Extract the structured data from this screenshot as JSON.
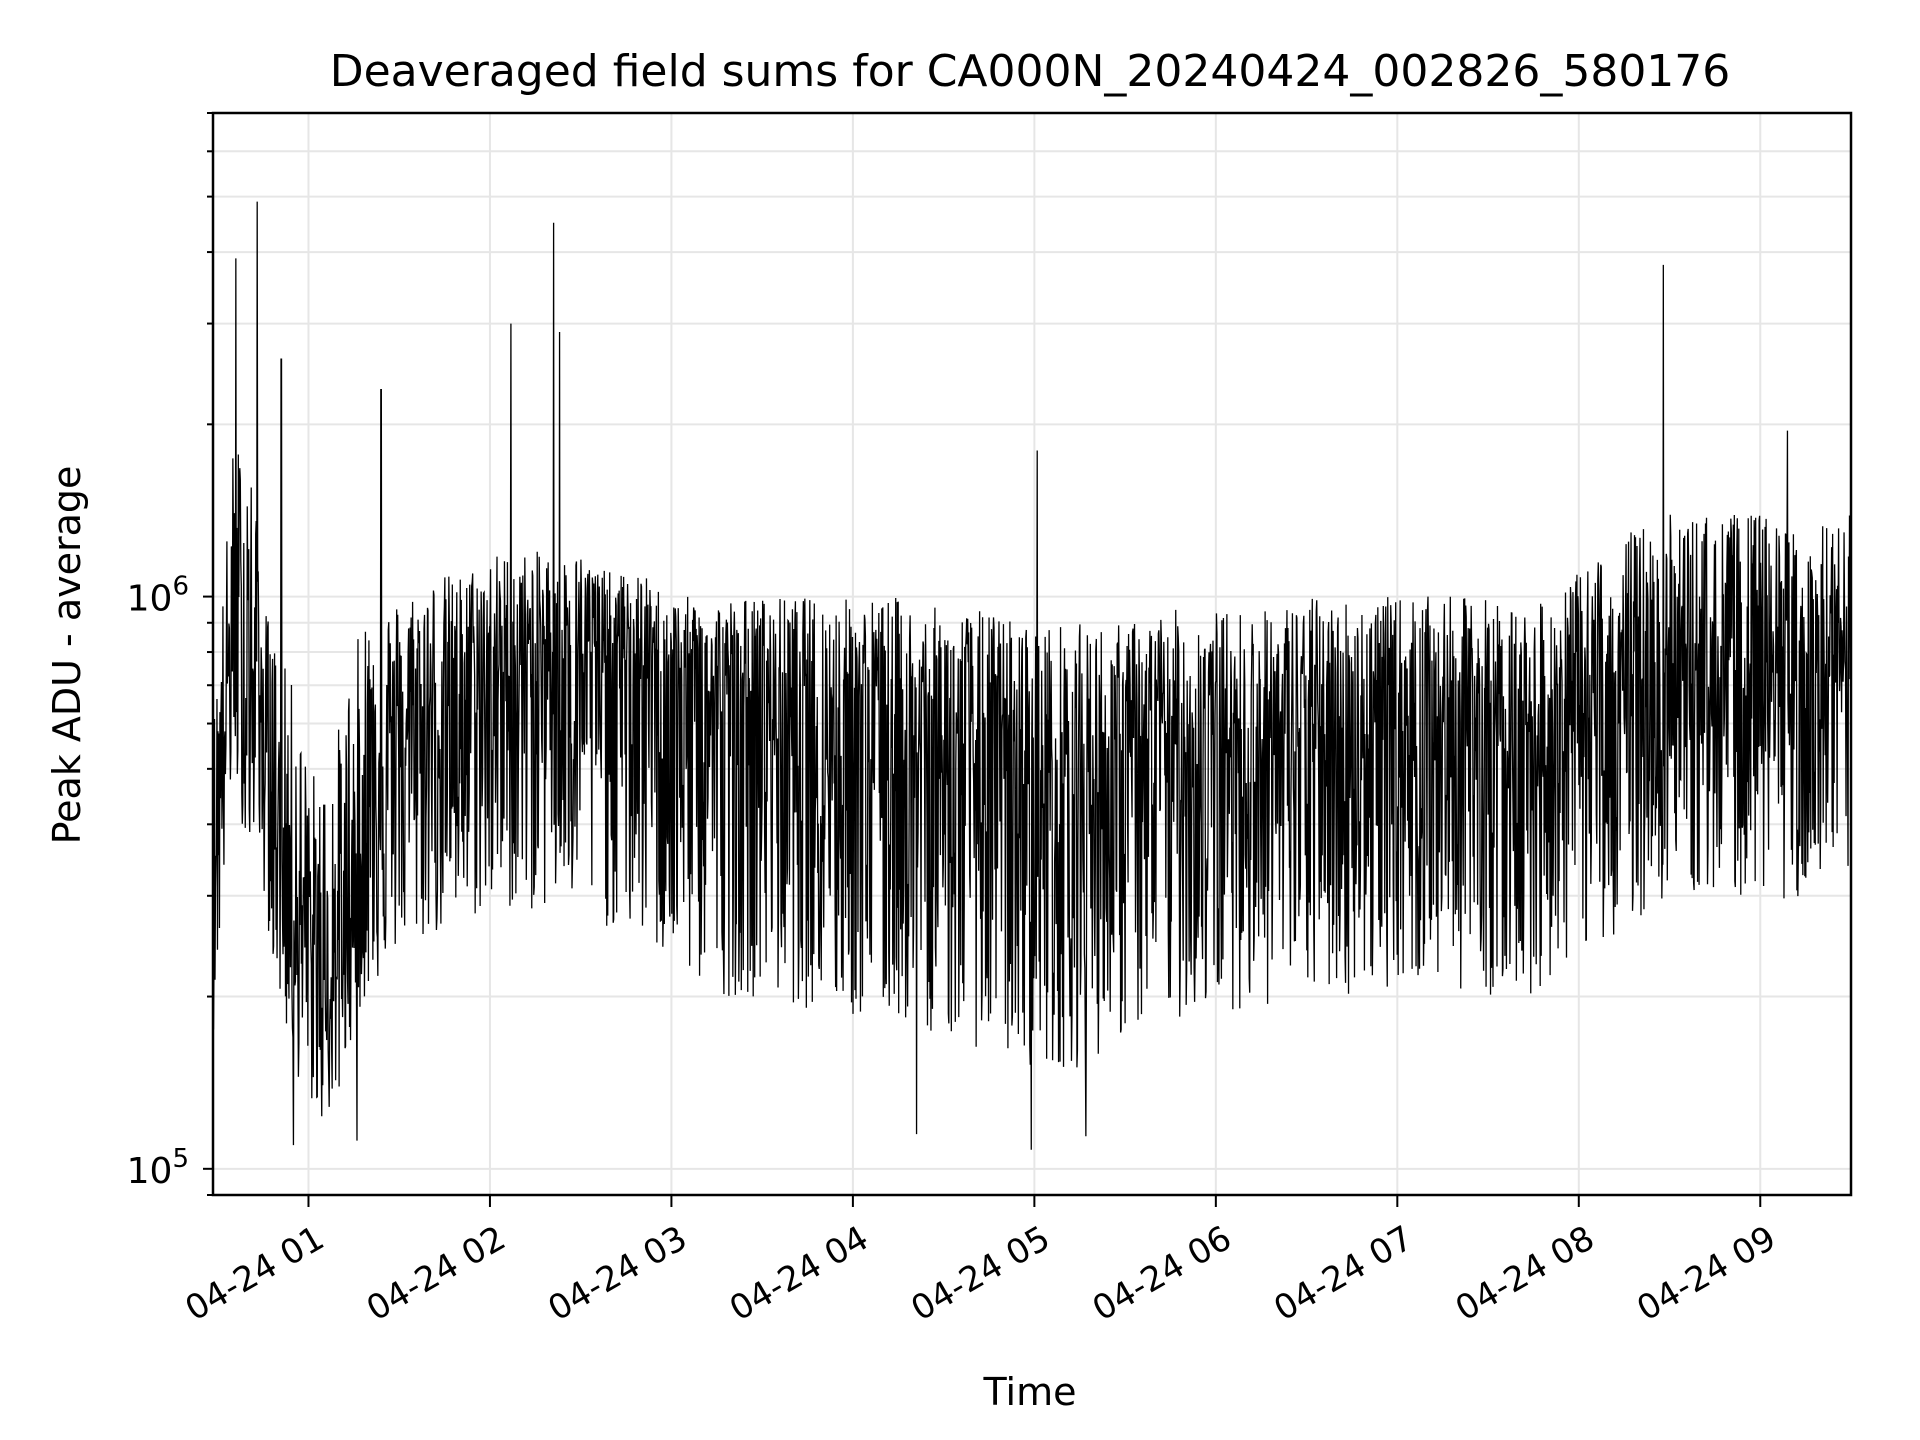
{
  "chart_data": {
    "type": "line",
    "title": "Deaveraged field sums for CA000N_20240424_002826_580176",
    "xlabel": "Time",
    "ylabel": "Peak ADU - average",
    "yscale": "log",
    "ylim": [
      90000,
      7000000
    ],
    "xlim": [
      "2024-04-24 00:28:26",
      "2024-04-24 09:30:00"
    ],
    "grid": true,
    "line_color": "#000000",
    "x_ticks": [
      {
        "time": "2024-04-24 01:00",
        "label": "04-24 01"
      },
      {
        "time": "2024-04-24 02:00",
        "label": "04-24 02"
      },
      {
        "time": "2024-04-24 03:00",
        "label": "04-24 03"
      },
      {
        "time": "2024-04-24 04:00",
        "label": "04-24 04"
      },
      {
        "time": "2024-04-24 05:00",
        "label": "04-24 05"
      },
      {
        "time": "2024-04-24 06:00",
        "label": "04-24 06"
      },
      {
        "time": "2024-04-24 07:00",
        "label": "04-24 07"
      },
      {
        "time": "2024-04-24 08:00",
        "label": "04-24 08"
      },
      {
        "time": "2024-04-24 09:00",
        "label": "04-24 09"
      }
    ],
    "y_ticks": [
      {
        "value": 100000,
        "base": "10",
        "exp": "5"
      },
      {
        "value": 1000000,
        "base": "10",
        "exp": "6"
      }
    ],
    "series": [
      {
        "name": "",
        "x": [
          "2024-04-24 00:28:26",
          "2024-04-24 00:35",
          "2024-04-24 00:40",
          "2024-04-24 00:45",
          "2024-04-24 00:50",
          "2024-04-24 00:55",
          "2024-04-24 01:00",
          "2024-04-24 01:05",
          "2024-04-24 01:10",
          "2024-04-24 01:15",
          "2024-04-24 01:20",
          "2024-04-24 01:25",
          "2024-04-24 01:30",
          "2024-04-24 01:40",
          "2024-04-24 01:50",
          "2024-04-24 02:00",
          "2024-04-24 02:10",
          "2024-04-24 02:20",
          "2024-04-24 02:30",
          "2024-04-24 02:40",
          "2024-04-24 02:50",
          "2024-04-24 03:00",
          "2024-04-24 03:15",
          "2024-04-24 03:30",
          "2024-04-24 03:45",
          "2024-04-24 04:00",
          "2024-04-24 04:15",
          "2024-04-24 04:30",
          "2024-04-24 04:45",
          "2024-04-24 05:00",
          "2024-04-24 05:15",
          "2024-04-24 05:30",
          "2024-04-24 05:45",
          "2024-04-24 06:00",
          "2024-04-24 06:15",
          "2024-04-24 06:30",
          "2024-04-24 06:45",
          "2024-04-24 07:00",
          "2024-04-24 07:15",
          "2024-04-24 07:30",
          "2024-04-24 07:45",
          "2024-04-24 08:00",
          "2024-04-24 08:15",
          "2024-04-24 08:30",
          "2024-04-24 08:45",
          "2024-04-24 09:00",
          "2024-04-24 09:15",
          "2024-04-24 09:30"
        ],
        "y_median": [
          350000,
          900000,
          700000,
          600000,
          400000,
          300000,
          250000,
          200000,
          220000,
          300000,
          450000,
          500000,
          550000,
          600000,
          650000,
          700000,
          750000,
          800000,
          800000,
          800000,
          750000,
          700000,
          650000,
          650000,
          600000,
          580000,
          550000,
          520000,
          500000,
          450000,
          450000,
          500000,
          550000,
          550000,
          550000,
          560000,
          570000,
          580000,
          590000,
          600000,
          570000,
          580000,
          650000,
          700000,
          720000,
          700000,
          680000,
          700000
        ],
        "y_high": [
          600000,
          1800000,
          2000000,
          1000000,
          800000,
          700000,
          500000,
          500000,
          600000,
          800000,
          1000000,
          1000000,
          1000000,
          1100000,
          1100000,
          1200000,
          1200000,
          1200000,
          1200000,
          1100000,
          1100000,
          1000000,
          1000000,
          1000000,
          1000000,
          1000000,
          1000000,
          950000,
          950000,
          900000,
          900000,
          900000,
          950000,
          950000,
          950000,
          1000000,
          1000000,
          1000000,
          1000000,
          1000000,
          950000,
          1100000,
          1300000,
          1400000,
          1400000,
          1400000,
          1300000,
          1400000
        ],
        "y_low": [
          170000,
          500000,
          350000,
          300000,
          200000,
          150000,
          130000,
          120000,
          130000,
          180000,
          200000,
          220000,
          240000,
          250000,
          260000,
          280000,
          280000,
          280000,
          280000,
          260000,
          250000,
          220000,
          200000,
          200000,
          190000,
          180000,
          180000,
          170000,
          160000,
          150000,
          150000,
          170000,
          180000,
          190000,
          190000,
          200000,
          200000,
          210000,
          210000,
          200000,
          200000,
          240000,
          260000,
          300000,
          300000,
          300000,
          290000,
          300000
        ],
        "spikes": [
          {
            "x": "2024-04-24 00:43",
            "y": 4900000
          },
          {
            "x": "2024-04-24 00:36",
            "y": 3900000
          },
          {
            "x": "2024-04-24 00:51",
            "y": 2600000
          },
          {
            "x": "2024-04-24 01:24",
            "y": 2300000
          },
          {
            "x": "2024-04-24 02:07",
            "y": 3000000
          },
          {
            "x": "2024-04-24 02:21",
            "y": 4500000
          },
          {
            "x": "2024-04-24 02:23",
            "y": 2900000
          },
          {
            "x": "2024-04-24 05:01",
            "y": 1800000
          },
          {
            "x": "2024-04-24 08:28",
            "y": 3800000
          },
          {
            "x": "2024-04-24 09:09",
            "y": 1950000
          },
          {
            "x": "2024-04-24 00:55",
            "y": 110000
          },
          {
            "x": "2024-04-24 01:16",
            "y": 112000
          },
          {
            "x": "2024-04-24 04:59",
            "y": 108000
          },
          {
            "x": "2024-04-24 04:21",
            "y": 115000
          },
          {
            "x": "2024-04-24 05:17",
            "y": 114000
          }
        ]
      }
    ]
  }
}
